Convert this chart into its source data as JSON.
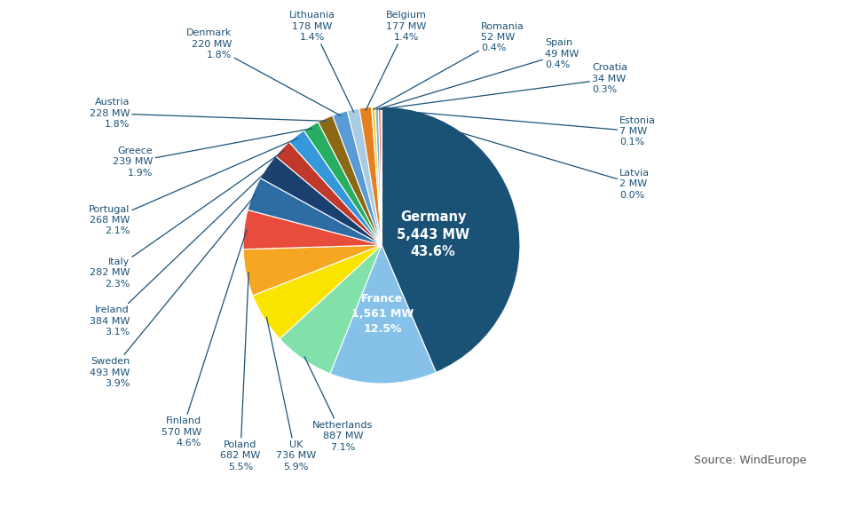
{
  "source": "Source: WindEurope",
  "slices": [
    {
      "country": "Germany",
      "mw": 5443,
      "pct": "43.6%",
      "color": "#1a5276"
    },
    {
      "country": "France",
      "mw": 1561,
      "pct": "12.5%",
      "color": "#85c1e9"
    },
    {
      "country": "Netherlands",
      "mw": 887,
      "pct": "7.1%",
      "color": "#82e0aa"
    },
    {
      "country": "UK",
      "mw": 736,
      "pct": "5.9%",
      "color": "#f9e400"
    },
    {
      "country": "Poland",
      "mw": 682,
      "pct": "5.5%",
      "color": "#f5a623"
    },
    {
      "country": "Finland",
      "mw": 570,
      "pct": "4.6%",
      "color": "#e74c3c"
    },
    {
      "country": "Sweden",
      "mw": 493,
      "pct": "3.9%",
      "color": "#2e6da4"
    },
    {
      "country": "Ireland",
      "mw": 384,
      "pct": "3.1%",
      "color": "#1b3f6e"
    },
    {
      "country": "Italy",
      "mw": 282,
      "pct": "2.3%",
      "color": "#c0392b"
    },
    {
      "country": "Portugal",
      "mw": 268,
      "pct": "2.1%",
      "color": "#3498db"
    },
    {
      "country": "Greece",
      "mw": 239,
      "pct": "1.9%",
      "color": "#27ae60"
    },
    {
      "country": "Austria",
      "mw": 228,
      "pct": "1.8%",
      "color": "#8b6914"
    },
    {
      "country": "Denmark",
      "mw": 220,
      "pct": "1.8%",
      "color": "#5b9bd5"
    },
    {
      "country": "Lithuania",
      "mw": 178,
      "pct": "1.4%",
      "color": "#a9cce3"
    },
    {
      "country": "Belgium",
      "mw": 177,
      "pct": "1.4%",
      "color": "#e67e22"
    },
    {
      "country": "Romania",
      "mw": 52,
      "pct": "0.4%",
      "color": "#f4d03f"
    },
    {
      "country": "Spain",
      "mw": 49,
      "pct": "0.4%",
      "color": "#7fb3d3"
    },
    {
      "country": "Croatia",
      "mw": 34,
      "pct": "0.3%",
      "color": "#e74c3c"
    },
    {
      "country": "Estonia",
      "mw": 7,
      "pct": "0.1%",
      "color": "#58d68d"
    },
    {
      "country": "Latvia",
      "mw": 2,
      "pct": "0.0%",
      "color": "#922b21"
    }
  ],
  "label_color": "#1a5276",
  "bg_color": "#ffffff"
}
